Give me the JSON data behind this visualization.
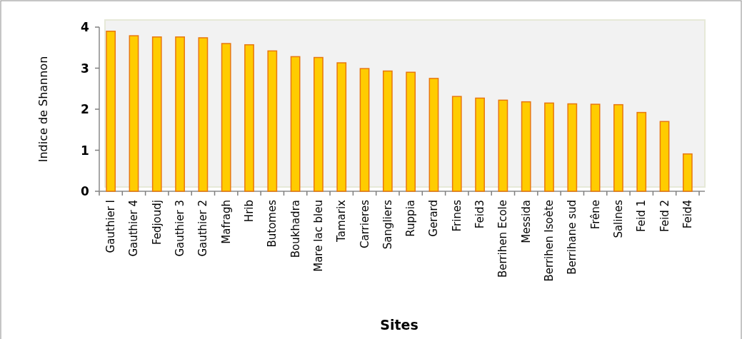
{
  "chart_data": {
    "type": "bar",
    "xlabel": "Sites",
    "ylabel": "Indice de Shannon",
    "categories": [
      "Gauthier I",
      "Gauthier 4",
      "Fedjoudj",
      "Gauthier 3",
      "Gauthier 2",
      "Mafragh",
      "Hrib",
      "Butomes",
      "Boukhadra",
      "Mare lac bleu",
      "Tamarix",
      "Carrieres",
      "Sangliers",
      "Ruppia",
      "Gerard",
      "Frines",
      "Feid3",
      "Berrihen Ecole",
      "Messida",
      "Berrihen Isoète",
      "Berrihane sud",
      "Frêne",
      "Salines",
      "Feid 1",
      "Feid 2",
      "Feid4"
    ],
    "values": [
      3.9,
      3.79,
      3.76,
      3.76,
      3.74,
      3.6,
      3.57,
      3.42,
      3.28,
      3.26,
      3.13,
      2.99,
      2.93,
      2.9,
      2.75,
      2.31,
      2.27,
      2.22,
      2.18,
      2.15,
      2.13,
      2.12,
      2.11,
      1.92,
      1.7,
      0.91
    ],
    "color": "#ffcc00",
    "ylim": [
      0,
      4
    ],
    "yticks": [
      0,
      1,
      2,
      3,
      4
    ]
  }
}
